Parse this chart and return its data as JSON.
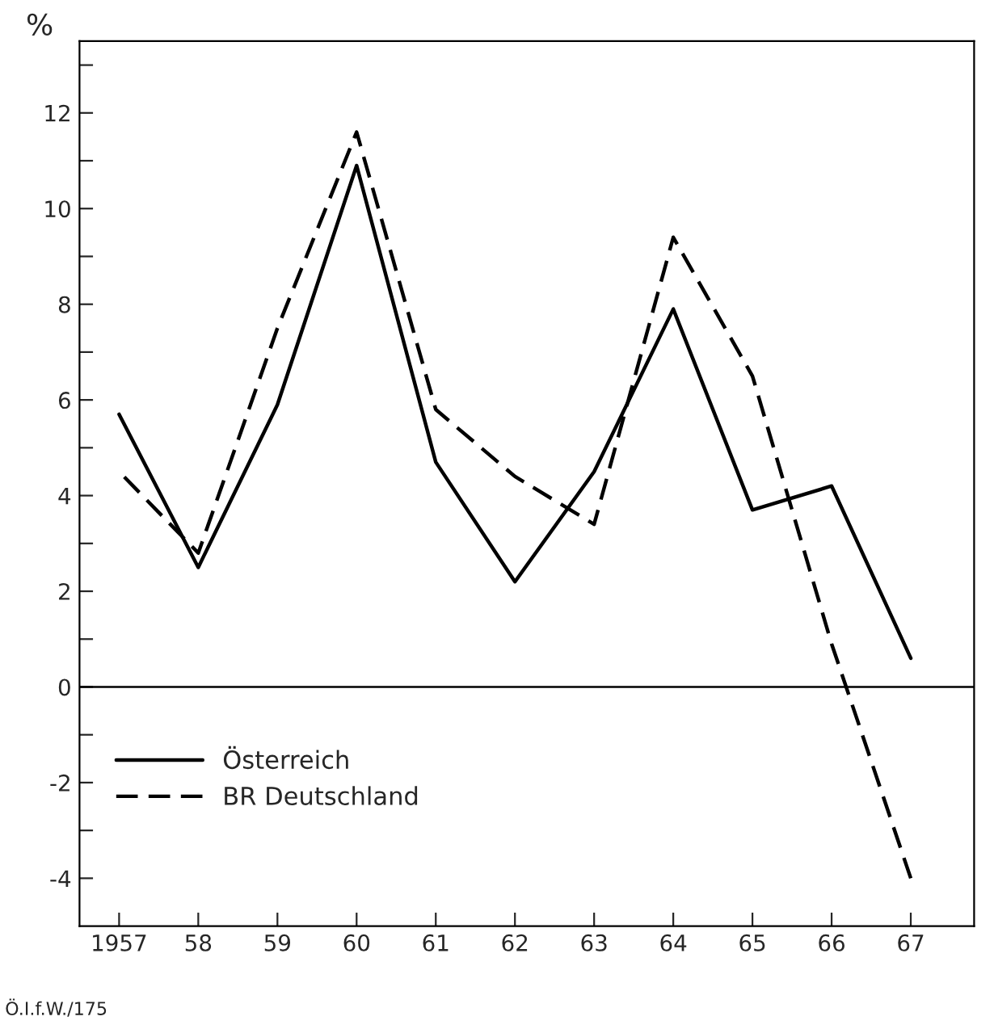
{
  "chart_data": {
    "type": "line",
    "ylabel": "%",
    "categories": [
      "1957",
      "58",
      "59",
      "60",
      "61",
      "62",
      "63",
      "64",
      "65",
      "66",
      "67"
    ],
    "series": [
      {
        "name": "Österreich",
        "color": "#000000",
        "line_style": "solid",
        "values": [
          5.7,
          2.5,
          5.9,
          10.9,
          4.7,
          2.2,
          4.5,
          7.9,
          3.7,
          4.2,
          0.6
        ]
      },
      {
        "name": "BR Deutschland",
        "color": "#000000",
        "line_style": "dashed",
        "values": [
          4.5,
          2.8,
          7.5,
          11.6,
          5.8,
          4.4,
          3.4,
          9.4,
          6.5,
          0.9,
          -4.0
        ]
      }
    ],
    "ylim": [
      -5,
      13.5
    ],
    "yticks": [
      -4,
      {
        "value": -3,
        "label": null
      },
      -2,
      {
        "value": -1,
        "label": null
      },
      0,
      {
        "value": 1,
        "label": null
      },
      2,
      {
        "value": 3,
        "label": null
      },
      4,
      {
        "value": 5,
        "label": null
      },
      6,
      {
        "value": 7,
        "label": null
      },
      8,
      {
        "value": 9,
        "label": null
      },
      10,
      {
        "value": 11,
        "label": null
      },
      12,
      {
        "value": 13,
        "label": null
      }
    ],
    "ref_lines": [
      {
        "axis": "y",
        "value": 0,
        "color": "#000000",
        "line_style": "solid"
      }
    ],
    "grid": false,
    "legend": "bottom left",
    "marker": "none",
    "annotations": [
      "Ö.I.f.W./175"
    ]
  }
}
